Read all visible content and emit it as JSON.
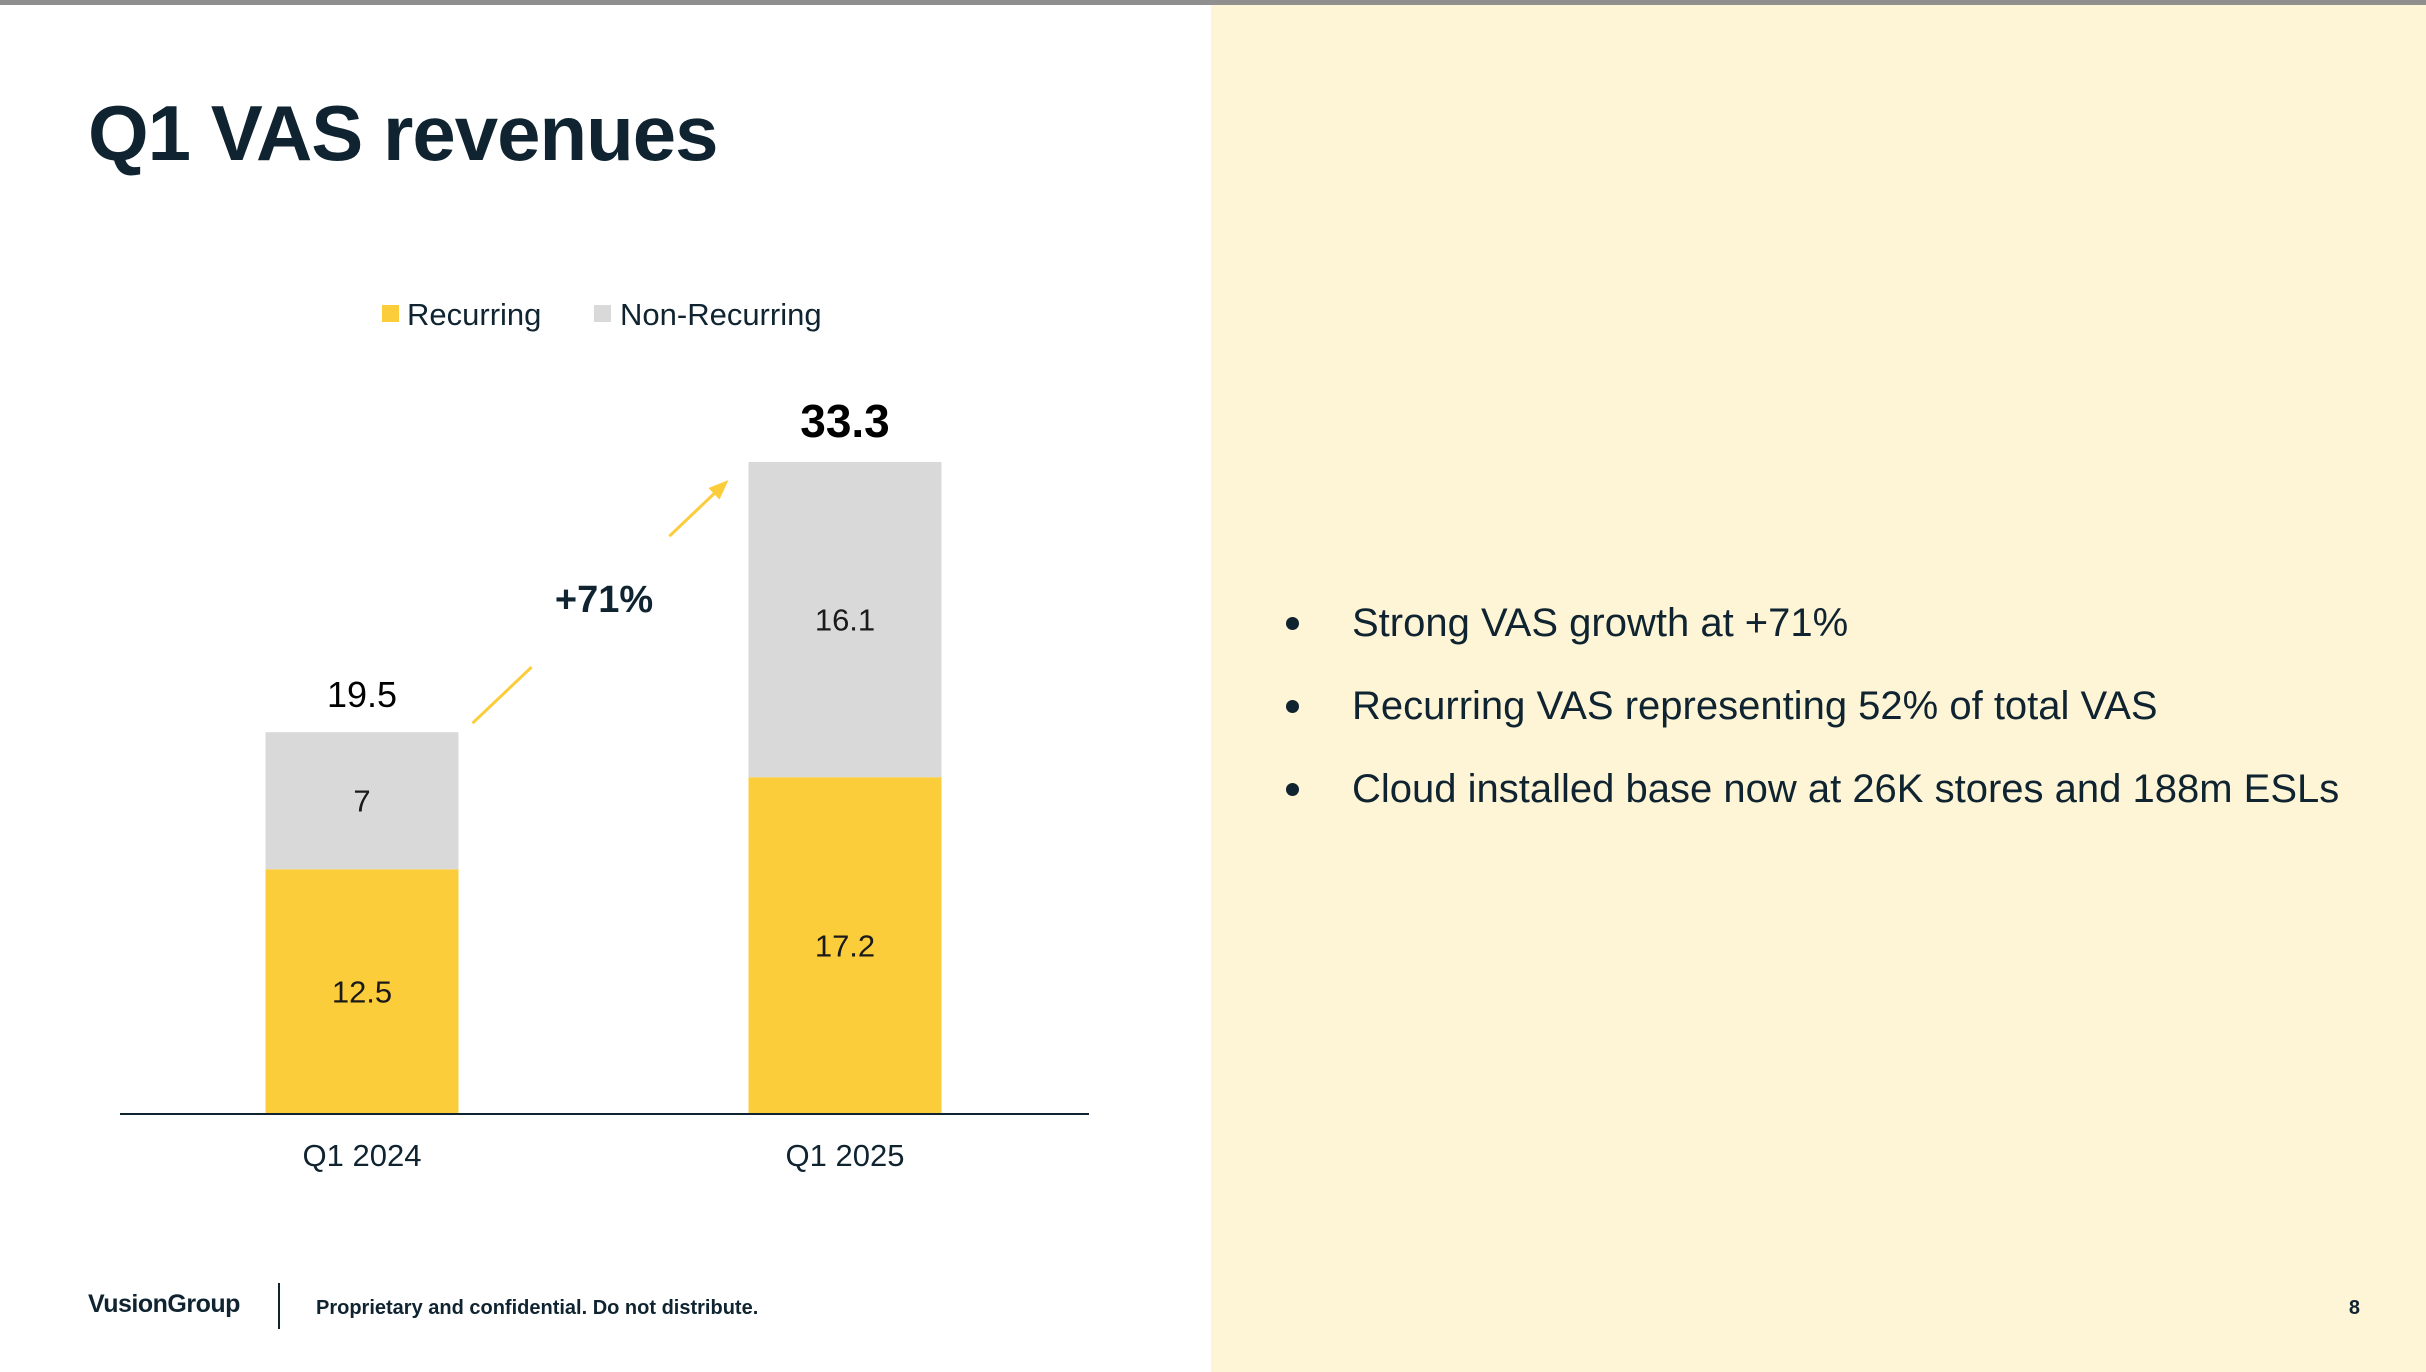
{
  "slide": {
    "title": "Q1 VAS revenues",
    "page_number": "8"
  },
  "colors": {
    "recurring": "#fccd3a",
    "non_recurring": "#d9d9d9",
    "right_panel_bg": "#fef5d6",
    "text": "#0f2430"
  },
  "chart_data": {
    "type": "bar",
    "stacked": true,
    "categories": [
      "Q1 2024",
      "Q1 2025"
    ],
    "series": [
      {
        "name": "Recurring",
        "values": [
          12.5,
          17.2
        ],
        "labels": [
          "12.5",
          "17.2"
        ]
      },
      {
        "name": "Non-Recurring",
        "values": [
          7,
          16.1
        ],
        "labels": [
          "7",
          "16.1"
        ]
      }
    ],
    "totals": [
      19.5,
      33.3
    ],
    "total_labels": [
      "19.5",
      "33.3"
    ],
    "ylim": [
      0,
      33.3
    ],
    "legend_position": "top",
    "grid": false,
    "annotation": {
      "text": "+71%",
      "type": "growth-arrow"
    }
  },
  "bullets": [
    "Strong VAS growth at +71%",
    "Recurring VAS representing 52% of total VAS",
    "Cloud installed base now at 26K stores and 188m ESLs"
  ],
  "footer": {
    "logo": "VusionGroup",
    "disclaimer": "Proprietary and confidential. Do not distribute."
  }
}
